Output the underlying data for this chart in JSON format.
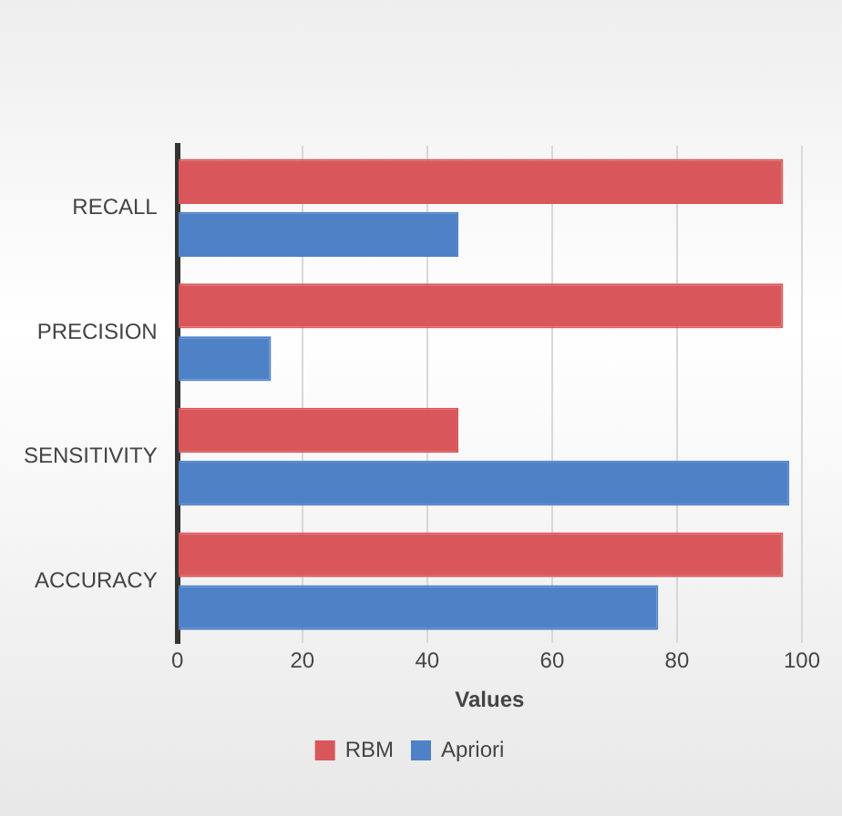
{
  "chart_data": {
    "type": "bar",
    "orientation": "horizontal",
    "xlabel": "Values",
    "categories": [
      "RECALL",
      "PRECISION",
      "SENSITIVITY",
      "ACCURACY"
    ],
    "series": [
      {
        "name": "RBM",
        "color": "#d9575a",
        "values": [
          97,
          97,
          45,
          97
        ]
      },
      {
        "name": "Apriori",
        "color": "#4f81c7",
        "values": [
          45,
          15,
          98,
          77
        ]
      }
    ],
    "xlim": [
      0,
      100
    ],
    "xticks": [
      0,
      20,
      40,
      60,
      80,
      100
    ],
    "grid": "x",
    "legend": "bottom"
  }
}
